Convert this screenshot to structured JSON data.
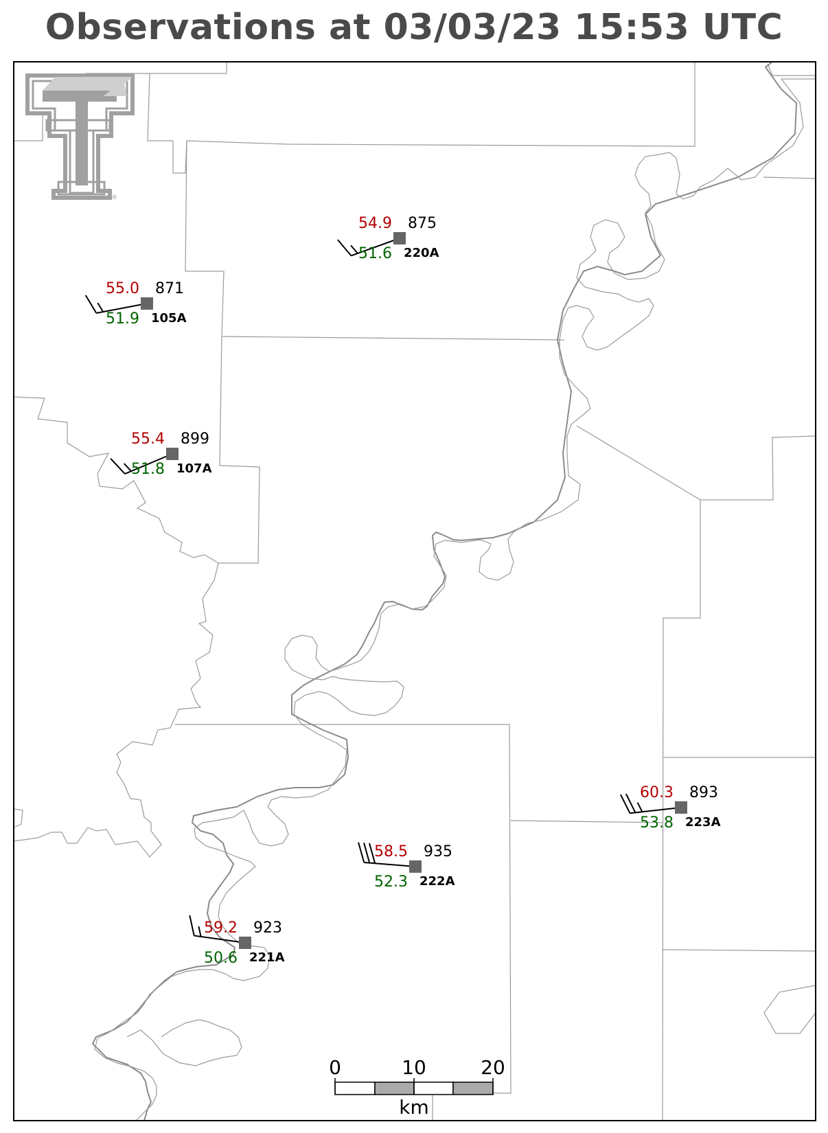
{
  "title": "Observations at 03/03/23 15:53 UTC",
  "logo": {
    "name": "texas-tech-double-t-logo",
    "color": "#a0a0a0",
    "mark": "®"
  },
  "colors": {
    "temperature": "#b30000",
    "dewpoint": "#006400",
    "station": "#666666",
    "frame": "#000000",
    "title": "#4a4a4a"
  },
  "stations": [
    {
      "id": "220A",
      "temp": "54.9",
      "dew": "51.6",
      "pres": "875",
      "barbs": 1.5
    },
    {
      "id": "105A",
      "temp": "55.0",
      "dew": "51.9",
      "pres": "871",
      "barbs": 1.5
    },
    {
      "id": "107A",
      "temp": "55.4",
      "dew": "51.8",
      "pres": "899",
      "barbs": 1.5
    },
    {
      "id": "223A",
      "temp": "60.3",
      "dew": "53.8",
      "pres": "893",
      "barbs": 2.5
    },
    {
      "id": "222A",
      "temp": "58.5",
      "dew": "52.3",
      "pres": "935",
      "barbs": 3
    },
    {
      "id": "221A",
      "temp": "59.2",
      "dew": "50.6",
      "pres": "923",
      "barbs": 1.5
    }
  ],
  "scale_bar": {
    "ticks": [
      "0",
      "10",
      "20"
    ],
    "unit": "km"
  }
}
